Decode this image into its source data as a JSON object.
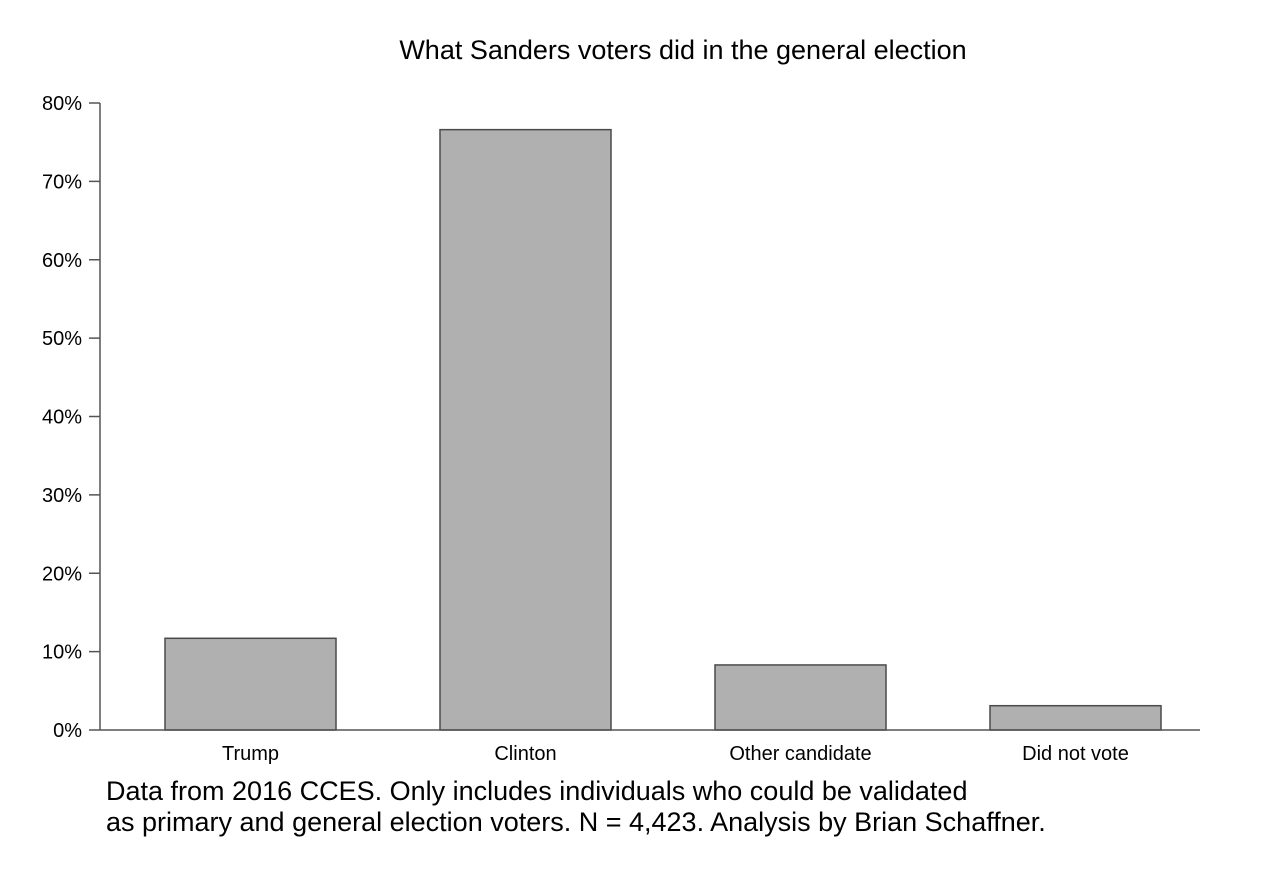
{
  "chart_data": {
    "type": "bar",
    "title": "What Sanders voters did in the general election",
    "xlabel": "",
    "ylabel": "",
    "categories": [
      "Trump",
      "Clinton",
      "Other candidate",
      "Did not vote"
    ],
    "values": [
      11.7,
      76.6,
      8.3,
      3.1
    ],
    "ylim": [
      0,
      80
    ],
    "yticks": [
      0,
      10,
      20,
      30,
      40,
      50,
      60,
      70,
      80
    ],
    "ytick_labels": [
      "0%",
      "10%",
      "20%",
      "30%",
      "40%",
      "50%",
      "60%",
      "70%",
      "80%"
    ],
    "grid": false,
    "legend": "none",
    "colors": {
      "bar_fill": "#b0b0b0",
      "bar_stroke": "#4a4a4a",
      "axis": "#555555"
    }
  },
  "note": {
    "line1": "Data from 2016 CCES. Only includes individuals who could be validated",
    "line2": "as primary and general election voters. N = 4,423. Analysis by Brian Schaffner."
  }
}
